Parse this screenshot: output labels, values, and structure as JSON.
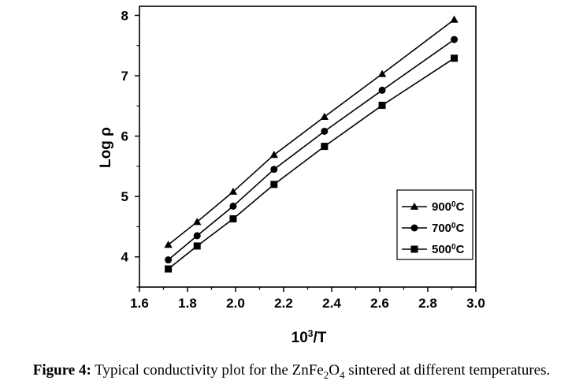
{
  "chart_data": {
    "type": "line",
    "title": "",
    "xlabel": "10³/T",
    "xlabel_base": "10",
    "xlabel_sup": "3",
    "xlabel_rest": "/T",
    "ylabel": "Log ρ",
    "xlim": [
      1.6,
      3.0
    ],
    "ylim": [
      3.5,
      8.15
    ],
    "x_ticks": [
      "1.6",
      "1.8",
      "2.0",
      "2.2",
      "2.4",
      "2.6",
      "2.8",
      "3.0"
    ],
    "y_ticks": [
      "4",
      "5",
      "6",
      "7",
      "8"
    ],
    "x": [
      1.72,
      1.84,
      1.99,
      2.16,
      2.37,
      2.61,
      2.91
    ],
    "series": [
      {
        "name": "900⁰C",
        "name_base": "900",
        "name_sup": "0",
        "name_unit": "C",
        "marker": "triangle",
        "values": [
          4.2,
          4.58,
          5.08,
          5.69,
          6.32,
          7.03,
          7.93
        ]
      },
      {
        "name": "700⁰C",
        "name_base": "700",
        "name_sup": "0",
        "name_unit": "C",
        "marker": "circle",
        "values": [
          3.95,
          4.35,
          4.84,
          5.45,
          6.08,
          6.76,
          7.6
        ]
      },
      {
        "name": "500⁰C",
        "name_base": "500",
        "name_sup": "0",
        "name_unit": "C",
        "marker": "square",
        "values": [
          3.8,
          4.18,
          4.63,
          5.2,
          5.83,
          6.51,
          7.29
        ]
      }
    ],
    "legend_position": "lower-right",
    "grid": false
  },
  "caption": {
    "label": "Figure 4:",
    "text_before": "Typical conductivity plot for the ZnFe",
    "sub1": "2",
    "text_mid": "O",
    "sub2": "4",
    "text_after": " sintered at different temperatures."
  },
  "colors": {
    "ink": "#000000",
    "background": "#ffffff"
  }
}
